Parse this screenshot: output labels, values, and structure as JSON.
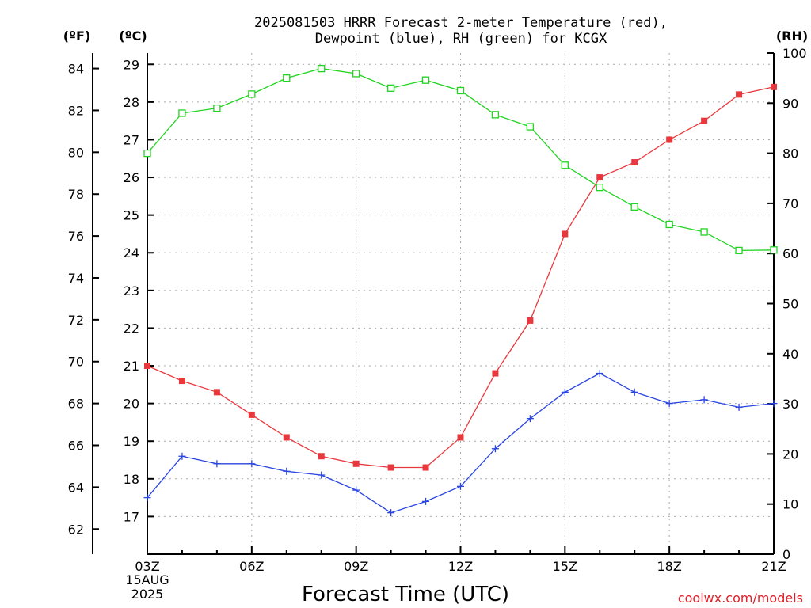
{
  "title_line1": "2025081503 HRRR Forecast 2-meter Temperature (red),",
  "title_line2": "Dewpoint (blue), RH (green) for KCGX",
  "unit_left_f": "(ºF)",
  "unit_left_c": "(ºC)",
  "unit_right": "(RH)",
  "xlabel": "Forecast Time (UTC)",
  "credit": "coolwx.com/models",
  "date_day": "15AUG",
  "date_year": "2025",
  "colors": {
    "temperature": "#e8383d",
    "dewpoint": "#2a45e0",
    "rh": "#22d322"
  },
  "chart_data": {
    "type": "line",
    "x": [
      "03Z",
      "04Z",
      "05Z",
      "06Z",
      "07Z",
      "08Z",
      "09Z",
      "10Z",
      "11Z",
      "12Z",
      "13Z",
      "14Z",
      "15Z",
      "16Z",
      "17Z",
      "18Z",
      "19Z",
      "20Z",
      "21Z"
    ],
    "xticks": [
      "03Z",
      "06Z",
      "09Z",
      "12Z",
      "15Z",
      "18Z",
      "21Z"
    ],
    "series": [
      {
        "name": "Temperature",
        "axis": "celsius",
        "marker": "filled-square",
        "values": [
          21.0,
          20.6,
          20.3,
          19.7,
          19.1,
          18.6,
          18.4,
          18.3,
          18.3,
          19.1,
          20.8,
          22.2,
          24.5,
          26.0,
          26.4,
          27.0,
          27.5,
          28.2,
          28.4
        ]
      },
      {
        "name": "Dewpoint",
        "axis": "celsius",
        "marker": "plus",
        "values": [
          17.5,
          18.6,
          18.4,
          18.4,
          18.2,
          18.1,
          17.7,
          17.1,
          17.4,
          17.8,
          18.8,
          19.6,
          20.3,
          20.8,
          20.3,
          20.0,
          20.1,
          19.9,
          20.0
        ]
      },
      {
        "name": "RH",
        "axis": "rh",
        "marker": "open-square",
        "values": [
          80.0,
          88.0,
          89.0,
          91.8,
          95.0,
          96.9,
          95.9,
          93.0,
          94.6,
          92.5,
          87.7,
          85.3,
          77.6,
          73.2,
          69.3,
          65.8,
          64.3,
          60.6,
          60.7
        ]
      }
    ],
    "y_celsius": {
      "ticks": [
        17,
        18,
        19,
        20,
        21,
        22,
        23,
        24,
        25,
        26,
        27,
        28,
        29
      ],
      "range": [
        16.0,
        29.3
      ]
    },
    "y_fahrenheit": {
      "ticks": [
        62,
        64,
        66,
        68,
        70,
        72,
        74,
        76,
        78,
        80,
        82,
        84
      ]
    },
    "y_rh": {
      "ticks": [
        0,
        10,
        20,
        30,
        40,
        50,
        60,
        70,
        80,
        90,
        100
      ],
      "range": [
        0,
        100
      ]
    },
    "grid": true
  }
}
